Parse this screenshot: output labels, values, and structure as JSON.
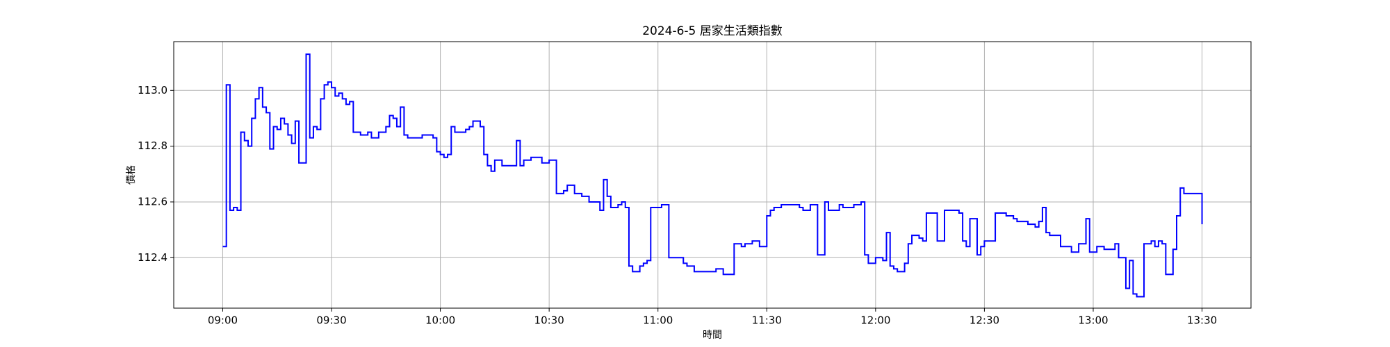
{
  "chart_data": {
    "type": "line",
    "step": "post",
    "title": "2024-6-5 居家生活類指數",
    "xlabel": "時間",
    "ylabel": "價格",
    "color": "blue",
    "grid": true,
    "xlim": [
      "08:46:30",
      "13:43:30"
    ],
    "xticks": [
      "09:00",
      "09:30",
      "10:00",
      "10:30",
      "11:00",
      "11:30",
      "12:00",
      "12:30",
      "13:00",
      "13:30"
    ],
    "ylim": [
      112.219,
      113.175
    ],
    "yticks": [
      112.4,
      112.6,
      112.8,
      {
        "value": 113,
        "label": "113.0"
      }
    ],
    "x": [
      "09:00",
      "09:01",
      "09:02",
      "09:03",
      "09:04",
      "09:05",
      "09:06",
      "09:07",
      "09:08",
      "09:09",
      "09:10",
      "09:11",
      "09:12",
      "09:13",
      "09:14",
      "09:15",
      "09:16",
      "09:17",
      "09:18",
      "09:19",
      "09:20",
      "09:21",
      "09:22",
      "09:23",
      "09:24",
      "09:25",
      "09:26",
      "09:27",
      "09:28",
      "09:29",
      "09:30",
      "09:31",
      "09:32",
      "09:33",
      "09:34",
      "09:35",
      "09:36",
      "09:38",
      "09:40",
      "09:41",
      "09:43",
      "09:45",
      "09:46",
      "09:47",
      "09:48",
      "09:49",
      "09:50",
      "09:51",
      "09:55",
      "09:58",
      "09:59",
      "10:00",
      "10:01",
      "10:02",
      "10:03",
      "10:04",
      "10:07",
      "10:08",
      "10:09",
      "10:11",
      "10:12",
      "10:13",
      "10:14",
      "10:15",
      "10:17",
      "10:21",
      "10:22",
      "10:23",
      "10:25",
      "10:28",
      "10:30",
      "10:32",
      "10:34",
      "10:35",
      "10:37",
      "10:39",
      "10:41",
      "10:44",
      "10:45",
      "10:46",
      "10:47",
      "10:49",
      "10:50",
      "10:51",
      "10:52",
      "10:53",
      "10:55",
      "10:56",
      "10:57",
      "10:58",
      "11:01",
      "11:03",
      "11:07",
      "11:08",
      "11:10",
      "11:16",
      "11:18",
      "11:21",
      "11:23",
      "11:24",
      "11:26",
      "11:28",
      "11:30",
      "11:31",
      "11:32",
      "11:34",
      "11:39",
      "11:40",
      "11:42",
      "11:44",
      "11:46",
      "11:47",
      "11:50",
      "11:51",
      "11:54",
      "11:56",
      "11:57",
      "11:58",
      "12:00",
      "12:02",
      "12:03",
      "12:04",
      "12:05",
      "12:06",
      "12:08",
      "12:09",
      "12:10",
      "12:12",
      "12:13",
      "12:14",
      "12:17",
      "12:19",
      "12:23",
      "12:24",
      "12:25",
      "12:26",
      "12:28",
      "12:29",
      "12:30",
      "12:33",
      "12:36",
      "12:38",
      "12:39",
      "12:42",
      "12:44",
      "12:45",
      "12:46",
      "12:47",
      "12:48",
      "12:51",
      "12:54",
      "12:56",
      "12:58",
      "12:59",
      "13:01",
      "13:03",
      "13:06",
      "13:07",
      "13:09",
      "13:10",
      "13:11",
      "13:12",
      "13:14",
      "13:16",
      "13:17",
      "13:18",
      "13:19",
      "13:20",
      "13:22",
      "13:23",
      "13:24",
      "13:25",
      "13:30"
    ],
    "values": [
      112.44,
      113.02,
      112.57,
      112.58,
      112.57,
      112.85,
      112.82,
      112.8,
      112.9,
      112.97,
      113.01,
      112.94,
      112.92,
      112.79,
      112.87,
      112.86,
      112.9,
      112.88,
      112.84,
      112.81,
      112.89,
      112.74,
      112.74,
      113.13,
      112.83,
      112.87,
      112.86,
      112.97,
      113.02,
      113.03,
      113.01,
      112.98,
      112.99,
      112.97,
      112.95,
      112.96,
      112.85,
      112.84,
      112.85,
      112.83,
      112.85,
      112.87,
      112.91,
      112.9,
      112.87,
      112.94,
      112.84,
      112.83,
      112.84,
      112.83,
      112.78,
      112.77,
      112.76,
      112.77,
      112.87,
      112.85,
      112.86,
      112.87,
      112.89,
      112.87,
      112.77,
      112.73,
      112.71,
      112.75,
      112.73,
      112.82,
      112.73,
      112.75,
      112.76,
      112.74,
      112.75,
      112.63,
      112.64,
      112.66,
      112.63,
      112.62,
      112.6,
      112.57,
      112.68,
      112.62,
      112.58,
      112.59,
      112.6,
      112.58,
      112.37,
      112.35,
      112.37,
      112.38,
      112.39,
      112.58,
      112.59,
      112.4,
      112.38,
      112.37,
      112.35,
      112.36,
      112.34,
      112.45,
      112.44,
      112.45,
      112.46,
      112.44,
      112.55,
      112.57,
      112.58,
      112.59,
      112.58,
      112.57,
      112.59,
      112.41,
      112.6,
      112.57,
      112.59,
      112.58,
      112.59,
      112.6,
      112.41,
      112.38,
      112.4,
      112.39,
      112.49,
      112.37,
      112.36,
      112.35,
      112.38,
      112.45,
      112.48,
      112.47,
      112.46,
      112.56,
      112.46,
      112.57,
      112.56,
      112.46,
      112.44,
      112.54,
      112.41,
      112.44,
      112.46,
      112.56,
      112.55,
      112.54,
      112.53,
      112.52,
      112.51,
      112.53,
      112.58,
      112.49,
      112.48,
      112.44,
      112.42,
      112.45,
      112.54,
      112.42,
      112.44,
      112.43,
      112.45,
      112.4,
      112.29,
      112.39,
      112.27,
      112.26,
      112.45,
      112.46,
      112.44,
      112.46,
      112.45,
      112.34,
      112.43,
      112.55,
      112.65,
      112.63,
      112.52
    ]
  }
}
